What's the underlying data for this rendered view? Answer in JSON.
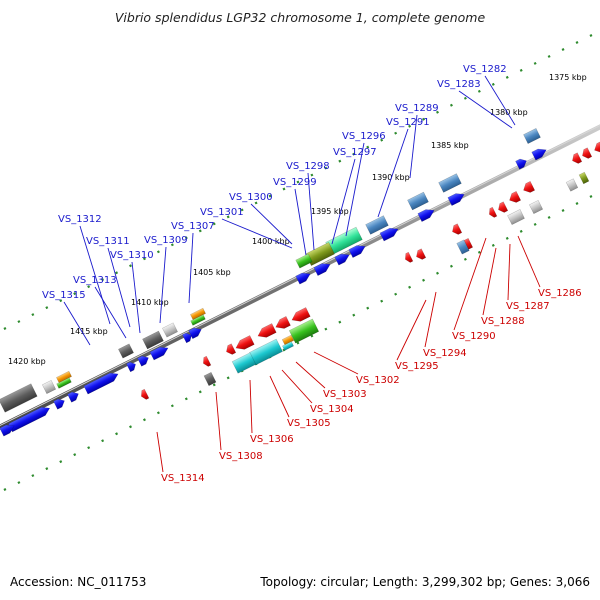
{
  "title": "Vibrio splendidus LGP32 chromosome 1, complete genome",
  "footer": {
    "accession": "Accession: NC_011753",
    "summary": "Topology: circular; Length: 3,299,302 bp; Genes: 3,066"
  },
  "colors": {
    "forward_label": "#1a1acc",
    "reverse_label": "#cc0000",
    "tick": "#2e8b2e",
    "backbone": "#7a7a7a"
  },
  "scale_labels": [
    "1375 kbp",
    "1380 kbp",
    "1385 kbp",
    "1390 kbp",
    "1395 kbp",
    "1400 kbp",
    "1405 kbp",
    "1410 kbp",
    "1415 kbp",
    "1420 kbp"
  ],
  "forward_gene_labels": [
    "VS_1282",
    "VS_1283",
    "VS_1289",
    "VS_1291",
    "VS_1296",
    "VS_1297",
    "VS_1298",
    "VS_1299",
    "VS_1300",
    "VS_1301",
    "VS_1307",
    "VS_1309",
    "VS_1310",
    "VS_1311",
    "VS_1312",
    "VS_1313",
    "VS_1315"
  ],
  "reverse_gene_labels": [
    "VS_1286",
    "VS_1287",
    "VS_1288",
    "VS_1290",
    "VS_1294",
    "VS_1295",
    "VS_1302",
    "VS_1303",
    "VS_1304",
    "VS_1305",
    "VS_1306",
    "VS_1308",
    "VS_1314"
  ]
}
